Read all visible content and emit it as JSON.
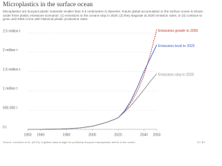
{
  "chart_data": {
    "type": "line",
    "title": "Microplastics in the surface ocean",
    "subtitle": "Microplastics are buoyant plastic materials smaller than 0.5 centimeters in diameter. Future global accumulation in the surface ocean is shown under three plastic emissions scenarios: (1) emissions to the oceans stop in 2020; (2) they stagnate at 2020 emission rates; or (3) continue to grow until 2050 in line with historical plastic production rates.",
    "source": "Source: Lebreton et al. (2019). A global mass budget for positively buoyant macroplastic debris in the ocean.",
    "license": "CC BY",
    "x": [
      1950,
      1960,
      1970,
      1980,
      1990,
      2000,
      2010,
      2015,
      2020,
      2025,
      2030,
      2035,
      2040,
      2045,
      2050
    ],
    "series": [
      {
        "name": "Emissions growth to 2050",
        "color": "#c0392b",
        "dash": true,
        "values": [
          0,
          1000,
          5000,
          15000,
          35000,
          80000,
          170000,
          230000,
          300000,
          460000,
          700000,
          1000000,
          1400000,
          1950000,
          2600000
        ]
      },
      {
        "name": "Emissions level to 2020",
        "color": "#3b5fc0",
        "dash": false,
        "values": [
          0,
          1000,
          5000,
          15000,
          35000,
          80000,
          170000,
          230000,
          300000,
          480000,
          750000,
          1100000,
          1500000,
          1850000,
          2200000
        ]
      },
      {
        "name": "Emissions stop in 2020",
        "color": "#8a8a8a",
        "dash": false,
        "values": [
          0,
          1000,
          5000,
          15000,
          35000,
          80000,
          170000,
          230000,
          300000,
          450000,
          620000,
          820000,
          1030000,
          1250000,
          1450000
        ]
      }
    ],
    "xlim": [
      1950,
      2050
    ],
    "xticks": [
      1950,
      1960,
      1980,
      2000,
      2020,
      2040,
      2050
    ],
    "ylim": [
      0,
      2500000
    ],
    "yticks": [
      {
        "value": 0,
        "label": "0 t"
      },
      {
        "value": 500000,
        "label": "500,000 t"
      },
      {
        "value": 1000000,
        "label": "1 million t"
      },
      {
        "value": 1500000,
        "label": "1.5 million t"
      },
      {
        "value": 2000000,
        "label": "2 million t"
      },
      {
        "value": 2500000,
        "label": "2.5 million t"
      }
    ],
    "grid": true
  }
}
